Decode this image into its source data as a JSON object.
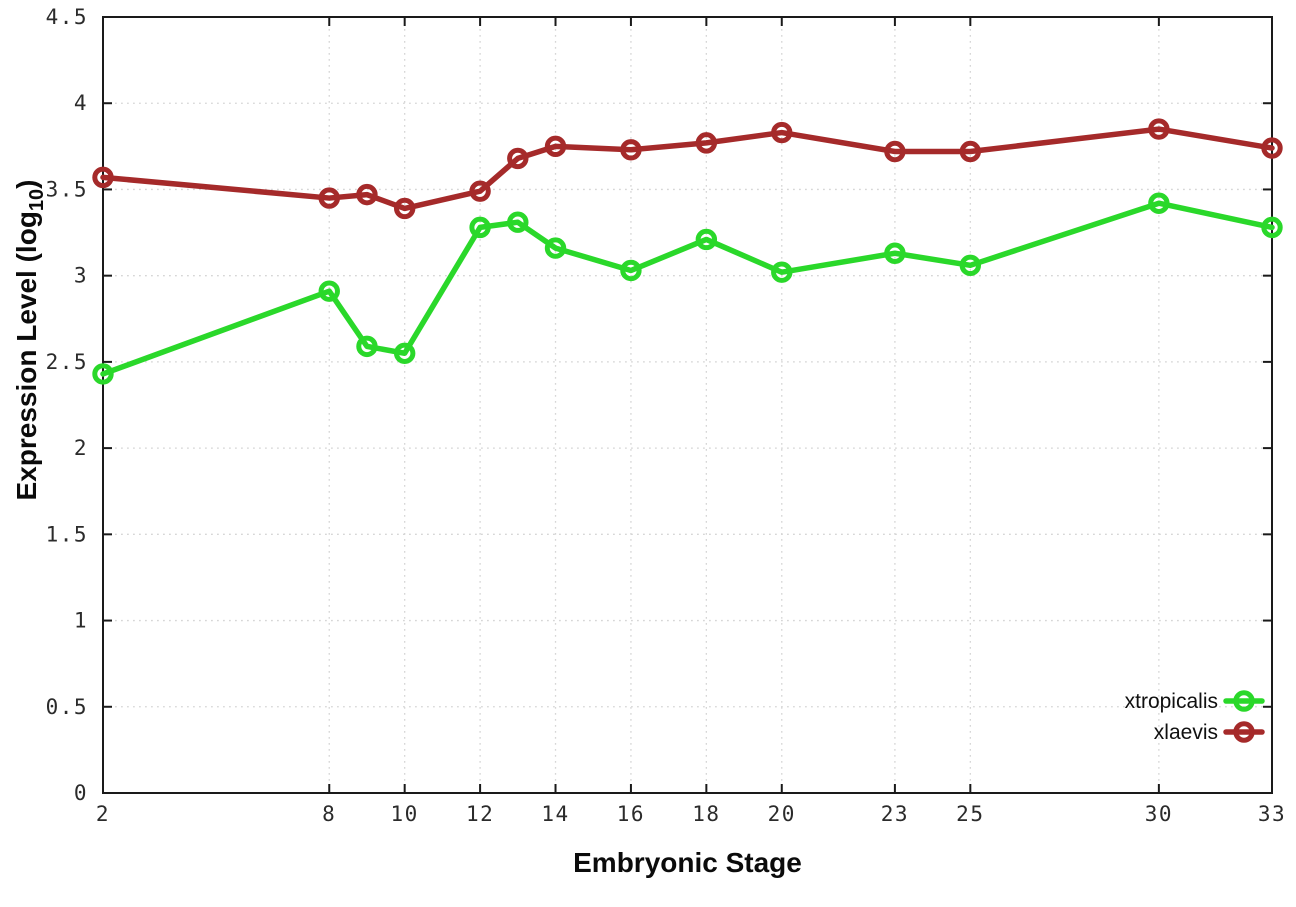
{
  "colors": {
    "background": "#ffffff",
    "grid": "#d6d6d6",
    "axis": "#1a1a1a",
    "tick_text": "#2b2b2b",
    "title_text": "#0b0b0b",
    "series_green": "#2ad82a",
    "series_red": "#a52a2a"
  },
  "chart_data": {
    "type": "line",
    "title": "",
    "xlabel": "Embryonic Stage",
    "ylabel": "Expression Level (log10)",
    "ylabel_parts": {
      "pre": "Expression Level (log",
      "sub": "10",
      "post": ")"
    },
    "x": [
      2,
      8,
      9,
      10,
      12,
      13,
      14,
      16,
      18,
      20,
      23,
      25,
      30,
      33
    ],
    "xlim": [
      2,
      33
    ],
    "ylim": [
      0,
      4.5
    ],
    "xtick_values": [
      2,
      8,
      10,
      12,
      14,
      16,
      18,
      20,
      23,
      25,
      30,
      33
    ],
    "xtick_labels": [
      "2",
      "8",
      "10",
      "12",
      "14",
      "16",
      "18",
      "20",
      "23",
      "25",
      "30",
      "33"
    ],
    "ytick_values": [
      0,
      0.5,
      1,
      1.5,
      2,
      2.5,
      3,
      3.5,
      4,
      4.5
    ],
    "ytick_labels": [
      "0",
      "0.5",
      "1",
      "1.5",
      "2",
      "2.5",
      "3",
      "3.5",
      "4",
      "4.5"
    ],
    "grid": true,
    "grid_style": "dotted",
    "marker": "open-circle",
    "legend_position": "bottom-right-inside",
    "series": [
      {
        "name": "xtropicalis",
        "color": "#2ad82a",
        "values": [
          2.43,
          2.91,
          2.59,
          2.55,
          3.28,
          3.31,
          3.16,
          3.03,
          3.21,
          3.02,
          3.13,
          3.06,
          3.42,
          3.28
        ]
      },
      {
        "name": "xlaevis",
        "color": "#a52a2a",
        "values": [
          3.57,
          3.45,
          3.47,
          3.39,
          3.49,
          3.68,
          3.75,
          3.73,
          3.77,
          3.83,
          3.72,
          3.72,
          3.85,
          3.74
        ]
      }
    ]
  }
}
